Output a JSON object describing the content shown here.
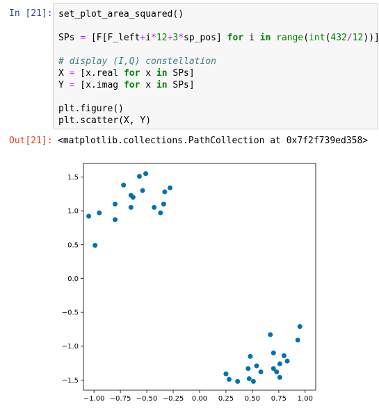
{
  "cell": {
    "in_prompt": "In [21]:",
    "out_prompt": "Out[21]:",
    "code_lines": [
      [
        {
          "t": "set_plot_area_squared",
          "c": ""
        },
        {
          "t": "()",
          "c": "par"
        }
      ],
      [],
      [
        {
          "t": "SPs ",
          "c": ""
        },
        {
          "t": "=",
          "c": "op"
        },
        {
          "t": " [F[F_left",
          "c": ""
        },
        {
          "t": "+",
          "c": "op"
        },
        {
          "t": "i",
          "c": ""
        },
        {
          "t": "*",
          "c": "op"
        },
        {
          "t": "12",
          "c": "num"
        },
        {
          "t": "+",
          "c": "op"
        },
        {
          "t": "3",
          "c": "num"
        },
        {
          "t": "*",
          "c": "op"
        },
        {
          "t": "sp_pos] ",
          "c": ""
        },
        {
          "t": "for",
          "c": "kw"
        },
        {
          "t": " i ",
          "c": ""
        },
        {
          "t": "in",
          "c": "kw"
        },
        {
          "t": " ",
          "c": ""
        },
        {
          "t": "range",
          "c": "num"
        },
        {
          "t": "(",
          "c": ""
        },
        {
          "t": "int",
          "c": "num"
        },
        {
          "t": "(",
          "c": ""
        },
        {
          "t": "432",
          "c": "num"
        },
        {
          "t": "/",
          "c": "op"
        },
        {
          "t": "12",
          "c": "num"
        },
        {
          "t": "))]",
          "c": ""
        }
      ],
      [],
      [
        {
          "t": "# display (I,Q) constellation",
          "c": "cm"
        }
      ],
      [
        {
          "t": "X ",
          "c": ""
        },
        {
          "t": "=",
          "c": "op"
        },
        {
          "t": " [x.real ",
          "c": ""
        },
        {
          "t": "for",
          "c": "kw"
        },
        {
          "t": " x ",
          "c": ""
        },
        {
          "t": "in",
          "c": "kw"
        },
        {
          "t": " SPs]",
          "c": ""
        }
      ],
      [
        {
          "t": "Y ",
          "c": ""
        },
        {
          "t": "=",
          "c": "op"
        },
        {
          "t": " [x.imag ",
          "c": ""
        },
        {
          "t": "for",
          "c": "kw"
        },
        {
          "t": " x ",
          "c": ""
        },
        {
          "t": "in",
          "c": "kw"
        },
        {
          "t": " SPs]",
          "c": ""
        }
      ],
      [],
      [
        {
          "t": "plt.figure()",
          "c": ""
        }
      ],
      [
        {
          "t": "plt.scatter(X, Y)",
          "c": ""
        }
      ]
    ],
    "output_text": "<matplotlib.collections.PathCollection at 0x7f2f739ed358>"
  },
  "colors": {
    "point": "#0072b2",
    "in_prompt": "#303f9f",
    "out_prompt": "#d84315"
  },
  "chart_data": {
    "type": "scatter",
    "title": "",
    "xlabel": "",
    "ylabel": "",
    "xlim": [
      -1.1,
      1.1
    ],
    "ylim": [
      -1.65,
      1.7
    ],
    "xticks": [
      -1.0,
      -0.75,
      -0.5,
      -0.25,
      0.0,
      0.25,
      0.5,
      0.75,
      1.0
    ],
    "xtick_labels": [
      "−1.00",
      "−0.75",
      "−0.50",
      "−0.25",
      "0.00",
      "0.25",
      "0.50",
      "0.75",
      "1.00"
    ],
    "yticks": [
      1.5,
      1.0,
      0.5,
      0.0,
      -0.5,
      -1.0,
      -1.5
    ],
    "ytick_labels": [
      "1.5",
      "1.0",
      "0.5",
      "0.0",
      "−0.5",
      "−1.0",
      "−1.5"
    ],
    "grid": false,
    "points": [
      {
        "x": -1.05,
        "y": 0.92
      },
      {
        "x": -0.95,
        "y": 0.97
      },
      {
        "x": -0.99,
        "y": 0.49
      },
      {
        "x": -0.8,
        "y": 1.1
      },
      {
        "x": -0.8,
        "y": 0.87
      },
      {
        "x": -0.72,
        "y": 1.38
      },
      {
        "x": -0.65,
        "y": 1.23
      },
      {
        "x": -0.63,
        "y": 1.2
      },
      {
        "x": -0.65,
        "y": 1.05
      },
      {
        "x": -0.57,
        "y": 1.51
      },
      {
        "x": -0.54,
        "y": 1.3
      },
      {
        "x": -0.51,
        "y": 1.55
      },
      {
        "x": -0.43,
        "y": 1.05
      },
      {
        "x": -0.37,
        "y": 0.97
      },
      {
        "x": -0.34,
        "y": 1.1
      },
      {
        "x": -0.33,
        "y": 1.28
      },
      {
        "x": -0.28,
        "y": 1.34
      },
      {
        "x": 0.25,
        "y": -1.41
      },
      {
        "x": 0.28,
        "y": -1.49
      },
      {
        "x": 0.36,
        "y": -1.52
      },
      {
        "x": 0.46,
        "y": -1.33
      },
      {
        "x": 0.48,
        "y": -1.15
      },
      {
        "x": 0.47,
        "y": -1.48
      },
      {
        "x": 0.51,
        "y": -1.52
      },
      {
        "x": 0.54,
        "y": -1.29
      },
      {
        "x": 0.58,
        "y": -1.38
      },
      {
        "x": 0.67,
        "y": -0.83
      },
      {
        "x": 0.7,
        "y": -1.1
      },
      {
        "x": 0.7,
        "y": -1.33
      },
      {
        "x": 0.73,
        "y": -1.38
      },
      {
        "x": 0.76,
        "y": -1.26
      },
      {
        "x": 0.76,
        "y": -1.46
      },
      {
        "x": 0.8,
        "y": -1.14
      },
      {
        "x": 0.83,
        "y": -1.22
      },
      {
        "x": 0.93,
        "y": -0.91
      },
      {
        "x": 0.95,
        "y": -0.71
      }
    ]
  }
}
